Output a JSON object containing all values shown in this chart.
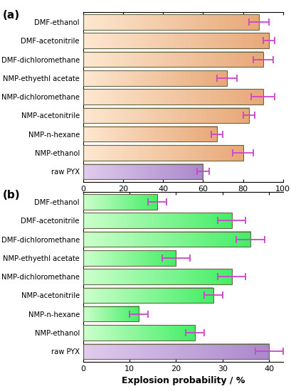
{
  "categories": [
    "DMF-ethanol",
    "DMF-acetonitrile",
    "DMF-dichloromethane",
    "NMP-ethyethl acetate",
    "NMP-dichloromethane",
    "NMP-acetonitrile",
    "NMP-n-hexane",
    "NMP-ethanol",
    "raw PYX"
  ],
  "a_values": [
    88,
    93,
    90,
    72,
    90,
    83,
    67,
    80,
    60
  ],
  "a_errors": [
    5,
    3,
    5,
    5,
    6,
    3,
    3,
    5,
    3
  ],
  "b_values": [
    16,
    32,
    36,
    20,
    32,
    28,
    12,
    24,
    40
  ],
  "b_errors": [
    2,
    3,
    3,
    3,
    3,
    2,
    2,
    2,
    3
  ],
  "bar_color_a": "#F5C5A0",
  "bar_color_b": "#66FF88",
  "bar_color_raw_a": "#C8A8E8",
  "bar_color_raw_b": "#C8A8E8",
  "error_color": "#CC44CC",
  "edge_color": "#666644",
  "xlabel_a": "Explosion probability / %",
  "xlabel_b": "Explosion probability / %",
  "label_a": "(a)",
  "label_b": "(b)",
  "xlim_a": [
    0,
    100
  ],
  "xlim_b": [
    0,
    43
  ],
  "xticks_a": [
    0,
    20,
    40,
    60,
    80,
    100
  ],
  "xticks_b": [
    0,
    10,
    20,
    30,
    40
  ]
}
